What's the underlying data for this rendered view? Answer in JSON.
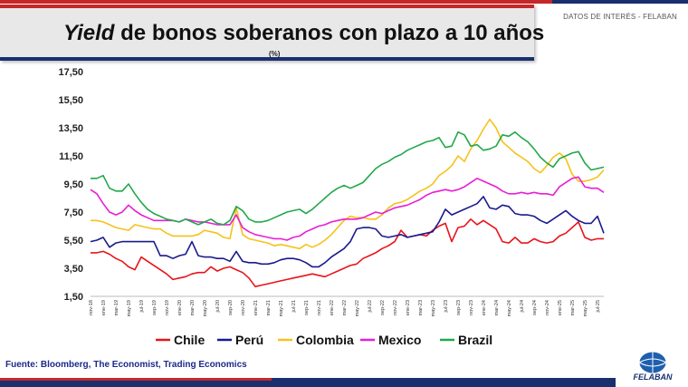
{
  "header": {
    "title_italic": "Yield",
    "title_rest": " de bonos soberanos con plazo a 10 años",
    "unit": "(%)",
    "tag": "DATOS DE INTERÉS - FELABAN"
  },
  "footer": {
    "source": "Fuente: Bloomberg, The Economist, Trading Economics",
    "logo": "FELABAN"
  },
  "colors": {
    "Chile": "#e8141b",
    "Perú": "#1a1a8c",
    "Colombia": "#f5c21b",
    "Mexico": "#e81ed4",
    "Brazil": "#22a84a"
  },
  "chart_data": {
    "type": "line",
    "title": "Yield de bonos soberanos con plazo a 10 años",
    "ylabel": "(%)",
    "xlabel": "",
    "ylim": [
      1.5,
      17.5
    ],
    "yticks": [
      "1,50",
      "3,50",
      "5,50",
      "7,50",
      "9,50",
      "11,50",
      "13,50",
      "15,50",
      "17,50"
    ],
    "ytick_values": [
      1.5,
      3.5,
      5.5,
      7.5,
      9.5,
      11.5,
      13.5,
      15.5,
      17.5
    ],
    "x_tick_labels": [
      "nov-18",
      "ene-19",
      "mar-19",
      "may-19",
      "jul-19",
      "sep-19",
      "nov-19",
      "ene-20",
      "mar-20",
      "may-20",
      "jul-20",
      "sep-20",
      "nov-20",
      "ene-21",
      "mar-21",
      "may-21",
      "jul-21",
      "sep-21",
      "nov-21",
      "ene-22",
      "mar-22",
      "may-22",
      "jul-22",
      "sep-22",
      "nov-22",
      "ene-23",
      "mar-23",
      "may-23",
      "jul-23",
      "sep-23",
      "nov-23",
      "ene-24",
      "mar-24",
      "may-24",
      "jul-24",
      "sep-24",
      "nov-24",
      "ene-25",
      "mar-25",
      "may-25",
      "jul-25"
    ],
    "n_points": 82,
    "series": [
      {
        "name": "Chile",
        "values": [
          4.6,
          4.6,
          4.7,
          4.5,
          4.2,
          4.0,
          3.6,
          3.4,
          4.3,
          4.0,
          3.7,
          3.4,
          3.1,
          2.7,
          2.8,
          2.9,
          3.1,
          3.2,
          3.2,
          3.6,
          3.3,
          3.5,
          3.6,
          3.4,
          3.2,
          2.8,
          2.2,
          2.3,
          2.4,
          2.5,
          2.6,
          2.7,
          2.8,
          2.9,
          3.0,
          3.1,
          3.0,
          2.9,
          3.1,
          3.3,
          3.5,
          3.7,
          3.8,
          4.2,
          4.4,
          4.6,
          4.9,
          5.1,
          5.4,
          6.2,
          5.7,
          5.8,
          5.9,
          5.8,
          6.2,
          6.5,
          6.7,
          5.4,
          6.4,
          6.5,
          7.0,
          6.6,
          6.9,
          6.6,
          6.3,
          5.4,
          5.3,
          5.7,
          5.3,
          5.3,
          5.6,
          5.4,
          5.3,
          5.4,
          5.8,
          6.0,
          6.4,
          6.8,
          5.7,
          5.5,
          5.6,
          5.6
        ]
      },
      {
        "name": "Perú",
        "values": [
          5.4,
          5.5,
          5.7,
          5.0,
          5.3,
          5.4,
          5.4,
          5.4,
          5.4,
          5.4,
          5.4,
          4.4,
          4.4,
          4.2,
          4.4,
          4.5,
          5.4,
          4.4,
          4.3,
          4.3,
          4.2,
          4.2,
          4.0,
          4.7,
          4.0,
          3.9,
          3.9,
          3.8,
          3.8,
          3.9,
          4.1,
          4.2,
          4.2,
          4.1,
          3.9,
          3.6,
          3.6,
          3.9,
          4.3,
          4.6,
          4.9,
          5.4,
          6.3,
          6.4,
          6.4,
          6.3,
          5.8,
          5.7,
          5.8,
          5.9,
          5.7,
          5.8,
          5.9,
          6.0,
          6.1,
          6.8,
          7.7,
          7.3,
          7.5,
          7.7,
          7.9,
          8.1,
          8.6,
          7.8,
          7.7,
          8.0,
          7.9,
          7.4,
          7.3,
          7.3,
          7.2,
          6.9,
          6.7,
          7.0,
          7.3,
          7.6,
          7.2,
          6.9,
          6.7,
          6.7,
          7.2,
          6.0
        ]
      },
      {
        "name": "Colombia",
        "values": [
          6.9,
          6.9,
          6.8,
          6.6,
          6.4,
          6.3,
          6.2,
          6.6,
          6.5,
          6.4,
          6.3,
          6.3,
          6.0,
          5.8,
          5.8,
          5.8,
          5.8,
          5.9,
          6.2,
          6.1,
          6.0,
          5.7,
          5.6,
          7.8,
          5.9,
          5.6,
          5.5,
          5.4,
          5.3,
          5.1,
          5.2,
          5.1,
          5.0,
          4.9,
          5.2,
          5.0,
          5.2,
          5.5,
          5.9,
          6.4,
          6.9,
          7.2,
          7.1,
          7.1,
          7.0,
          7.0,
          7.3,
          7.8,
          8.1,
          8.2,
          8.4,
          8.7,
          9.0,
          9.2,
          9.5,
          10.1,
          10.4,
          10.8,
          11.5,
          11.1,
          12.0,
          12.6,
          13.4,
          14.1,
          13.5,
          12.5,
          12.1,
          11.7,
          11.4,
          11.1,
          10.6,
          10.3,
          10.8,
          11.4,
          11.7,
          11.3,
          10.2,
          9.7,
          9.7,
          9.8,
          10.0,
          10.5
        ]
      },
      {
        "name": "Mexico",
        "values": [
          9.1,
          8.8,
          8.1,
          7.5,
          7.3,
          7.5,
          8.0,
          7.6,
          7.3,
          7.1,
          6.9,
          6.9,
          6.9,
          6.9,
          6.8,
          7.0,
          6.9,
          6.8,
          6.8,
          6.7,
          6.6,
          6.6,
          6.6,
          7.3,
          6.4,
          6.1,
          5.9,
          5.8,
          5.7,
          5.6,
          5.6,
          5.5,
          5.7,
          5.8,
          6.1,
          6.3,
          6.5,
          6.6,
          6.8,
          6.9,
          7.0,
          7.0,
          7.0,
          7.1,
          7.3,
          7.5,
          7.4,
          7.6,
          7.8,
          7.9,
          8.0,
          8.2,
          8.4,
          8.7,
          8.9,
          9.0,
          9.1,
          9.0,
          9.1,
          9.3,
          9.6,
          9.9,
          9.7,
          9.5,
          9.3,
          9.0,
          8.8,
          8.8,
          8.9,
          8.8,
          8.9,
          8.8,
          8.8,
          8.7,
          9.3,
          9.6,
          9.9,
          10.0,
          9.3,
          9.2,
          9.2,
          8.9
        ]
      },
      {
        "name": "Brazil",
        "values": [
          9.9,
          9.9,
          10.1,
          9.2,
          9.0,
          9.0,
          9.5,
          8.8,
          8.2,
          7.7,
          7.4,
          7.2,
          7.0,
          6.9,
          6.8,
          7.0,
          6.8,
          6.6,
          6.8,
          7.0,
          6.7,
          6.6,
          6.9,
          7.9,
          7.6,
          7.0,
          6.8,
          6.8,
          6.9,
          7.1,
          7.3,
          7.5,
          7.6,
          7.7,
          7.4,
          7.7,
          8.1,
          8.5,
          8.9,
          9.2,
          9.4,
          9.2,
          9.4,
          9.6,
          10.1,
          10.6,
          10.9,
          11.1,
          11.4,
          11.6,
          11.9,
          12.1,
          12.3,
          12.5,
          12.6,
          12.8,
          12.1,
          12.2,
          13.2,
          13.0,
          12.2,
          12.3,
          11.9,
          12.0,
          12.2,
          13.0,
          12.9,
          13.2,
          12.8,
          12.5,
          12.0,
          11.4,
          11.0,
          10.7,
          11.3,
          11.5,
          11.7,
          11.8,
          11.0,
          10.5,
          10.6,
          10.7
        ]
      }
    ]
  }
}
